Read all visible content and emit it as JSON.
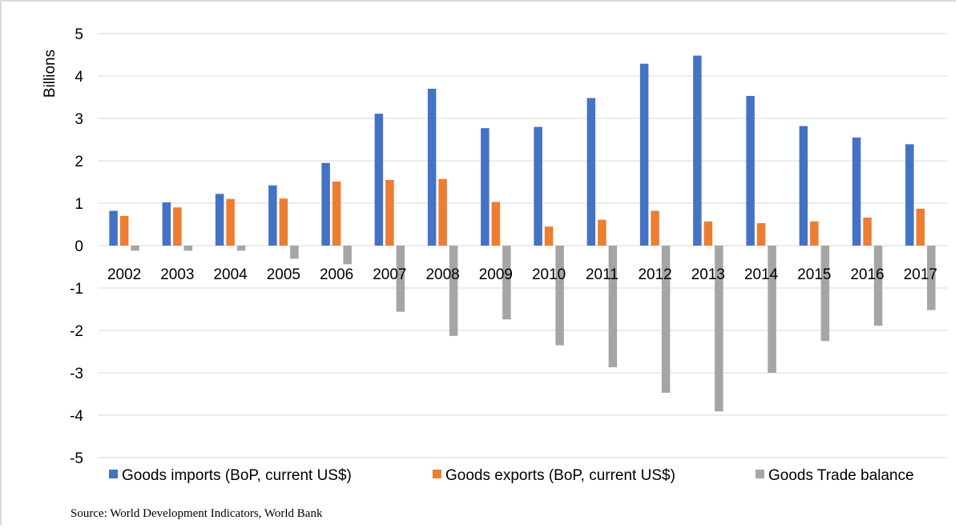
{
  "source": "Source: World Development Indicators, World Bank",
  "chart_data": {
    "type": "bar",
    "ylabel": "Billions",
    "ylim": [
      -5,
      5
    ],
    "yticks": [
      5,
      4,
      3,
      2,
      1,
      0,
      -1,
      -2,
      -3,
      -4,
      -5
    ],
    "grid": true,
    "legend_position": "bottom",
    "categories": [
      "2002",
      "2003",
      "2004",
      "2005",
      "2006",
      "2007",
      "2008",
      "2009",
      "2010",
      "2011",
      "2012",
      "2013",
      "2014",
      "2015",
      "2016",
      "2017"
    ],
    "series": [
      {
        "name": "Goods imports (BoP, current US$)",
        "color": "#4472c4",
        "values": [
          0.82,
          1.02,
          1.22,
          1.42,
          1.95,
          3.11,
          3.7,
          2.77,
          2.8,
          3.48,
          4.29,
          4.48,
          3.53,
          2.82,
          2.55,
          2.39
        ]
      },
      {
        "name": "Goods exports (BoP, current US$)",
        "color": "#ed7d31",
        "values": [
          0.7,
          0.9,
          1.1,
          1.11,
          1.51,
          1.55,
          1.57,
          1.03,
          0.45,
          0.61,
          0.82,
          0.57,
          0.53,
          0.57,
          0.66,
          0.87
        ]
      },
      {
        "name": "Goods Trade balance",
        "color": "#a5a5a5",
        "values": [
          -0.12,
          -0.12,
          -0.12,
          -0.31,
          -0.44,
          -1.56,
          -2.13,
          -1.74,
          -2.35,
          -2.87,
          -3.47,
          -3.91,
          -3.0,
          -2.25,
          -1.89,
          -1.52
        ]
      }
    ]
  }
}
